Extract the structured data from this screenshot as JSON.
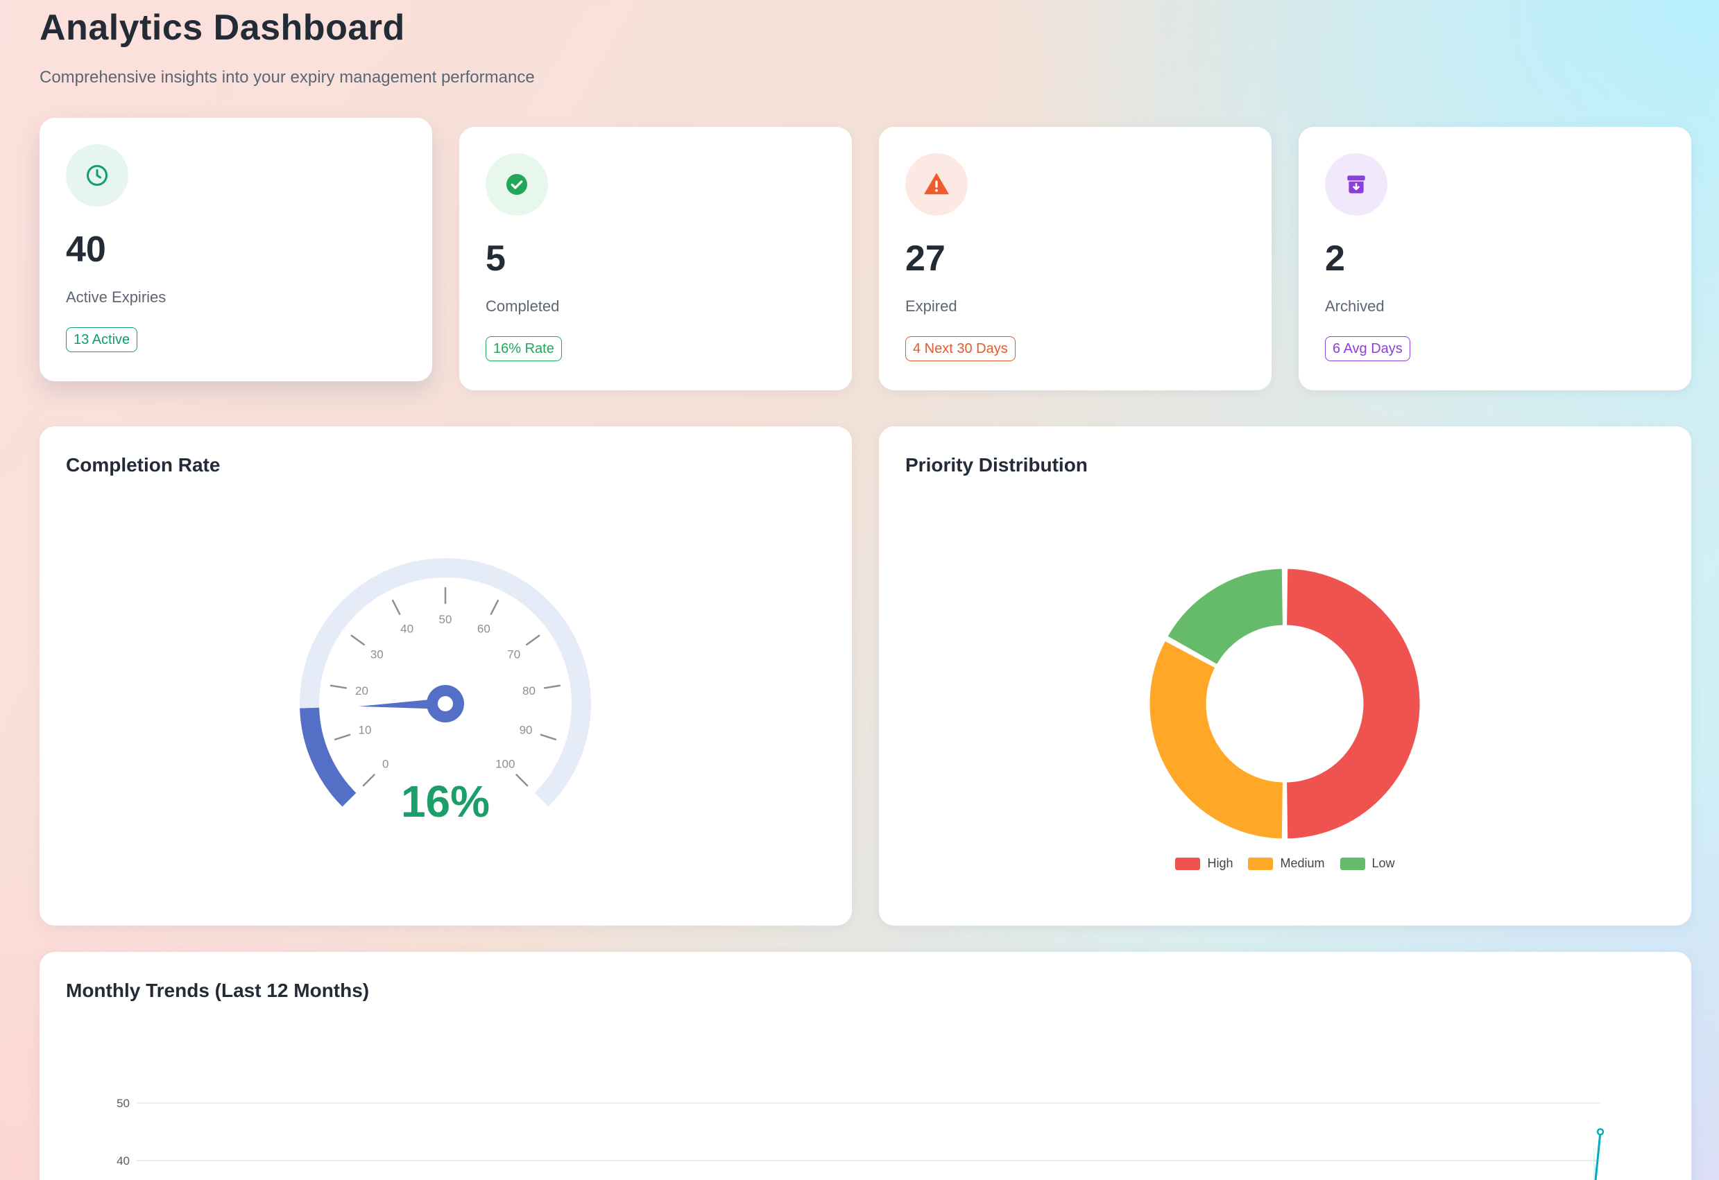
{
  "header": {
    "title": "Analytics Dashboard",
    "subtitle": "Comprehensive insights into your expiry management performance"
  },
  "stats": [
    {
      "value": "40",
      "label": "Active Expiries",
      "badge": "13 Active",
      "icon": "clock-icon",
      "color": "#0f9d6b",
      "icon_bg": "#e6f5ef"
    },
    {
      "value": "5",
      "label": "Completed",
      "badge": "16% Rate",
      "icon": "check-circle-icon",
      "color": "#22a65a",
      "icon_bg": "#e7f7ec"
    },
    {
      "value": "27",
      "label": "Expired",
      "badge": "4 Next 30 Days",
      "icon": "warning-triangle-icon",
      "color": "#e25a2f",
      "icon_bg": "#fde9e4"
    },
    {
      "value": "2",
      "label": "Archived",
      "badge": "6 Avg Days",
      "icon": "archive-box-icon",
      "color": "#8b3fd9",
      "icon_bg": "#f1e9fb"
    }
  ],
  "completion_rate": {
    "title": "Completion Rate",
    "value": 16,
    "display": "16%",
    "ticks": [
      "0",
      "10",
      "20",
      "30",
      "40",
      "50",
      "60",
      "70",
      "80",
      "90",
      "100"
    ],
    "accent": "#5470c6",
    "value_color": "#1b9e6a"
  },
  "priority_distribution": {
    "title": "Priority Distribution",
    "legend": [
      "High",
      "Medium",
      "Low"
    ]
  },
  "monthly_trends": {
    "title": "Monthly Trends (Last 12 Months)"
  },
  "chart_data": [
    {
      "type": "gauge",
      "value": 16,
      "min": 0,
      "max": 100,
      "tick_labels": [
        "0",
        "10",
        "20",
        "30",
        "40",
        "50",
        "60",
        "70",
        "80",
        "90",
        "100"
      ],
      "detail": "16%"
    },
    {
      "type": "pie",
      "subtype": "donut",
      "categories": [
        "High",
        "Medium",
        "Low"
      ],
      "values": [
        50,
        33,
        17
      ],
      "colors": [
        "#ee5350",
        "#ffa726",
        "#66bb6a"
      ],
      "legend": "bottom"
    },
    {
      "type": "line",
      "title": "Monthly Trends (Last 12 Months)",
      "y_tick_labels": [
        "40",
        "50"
      ],
      "series": [
        {
          "color": "#00acc1",
          "last_value": 45
        }
      ],
      "grid": true
    }
  ]
}
